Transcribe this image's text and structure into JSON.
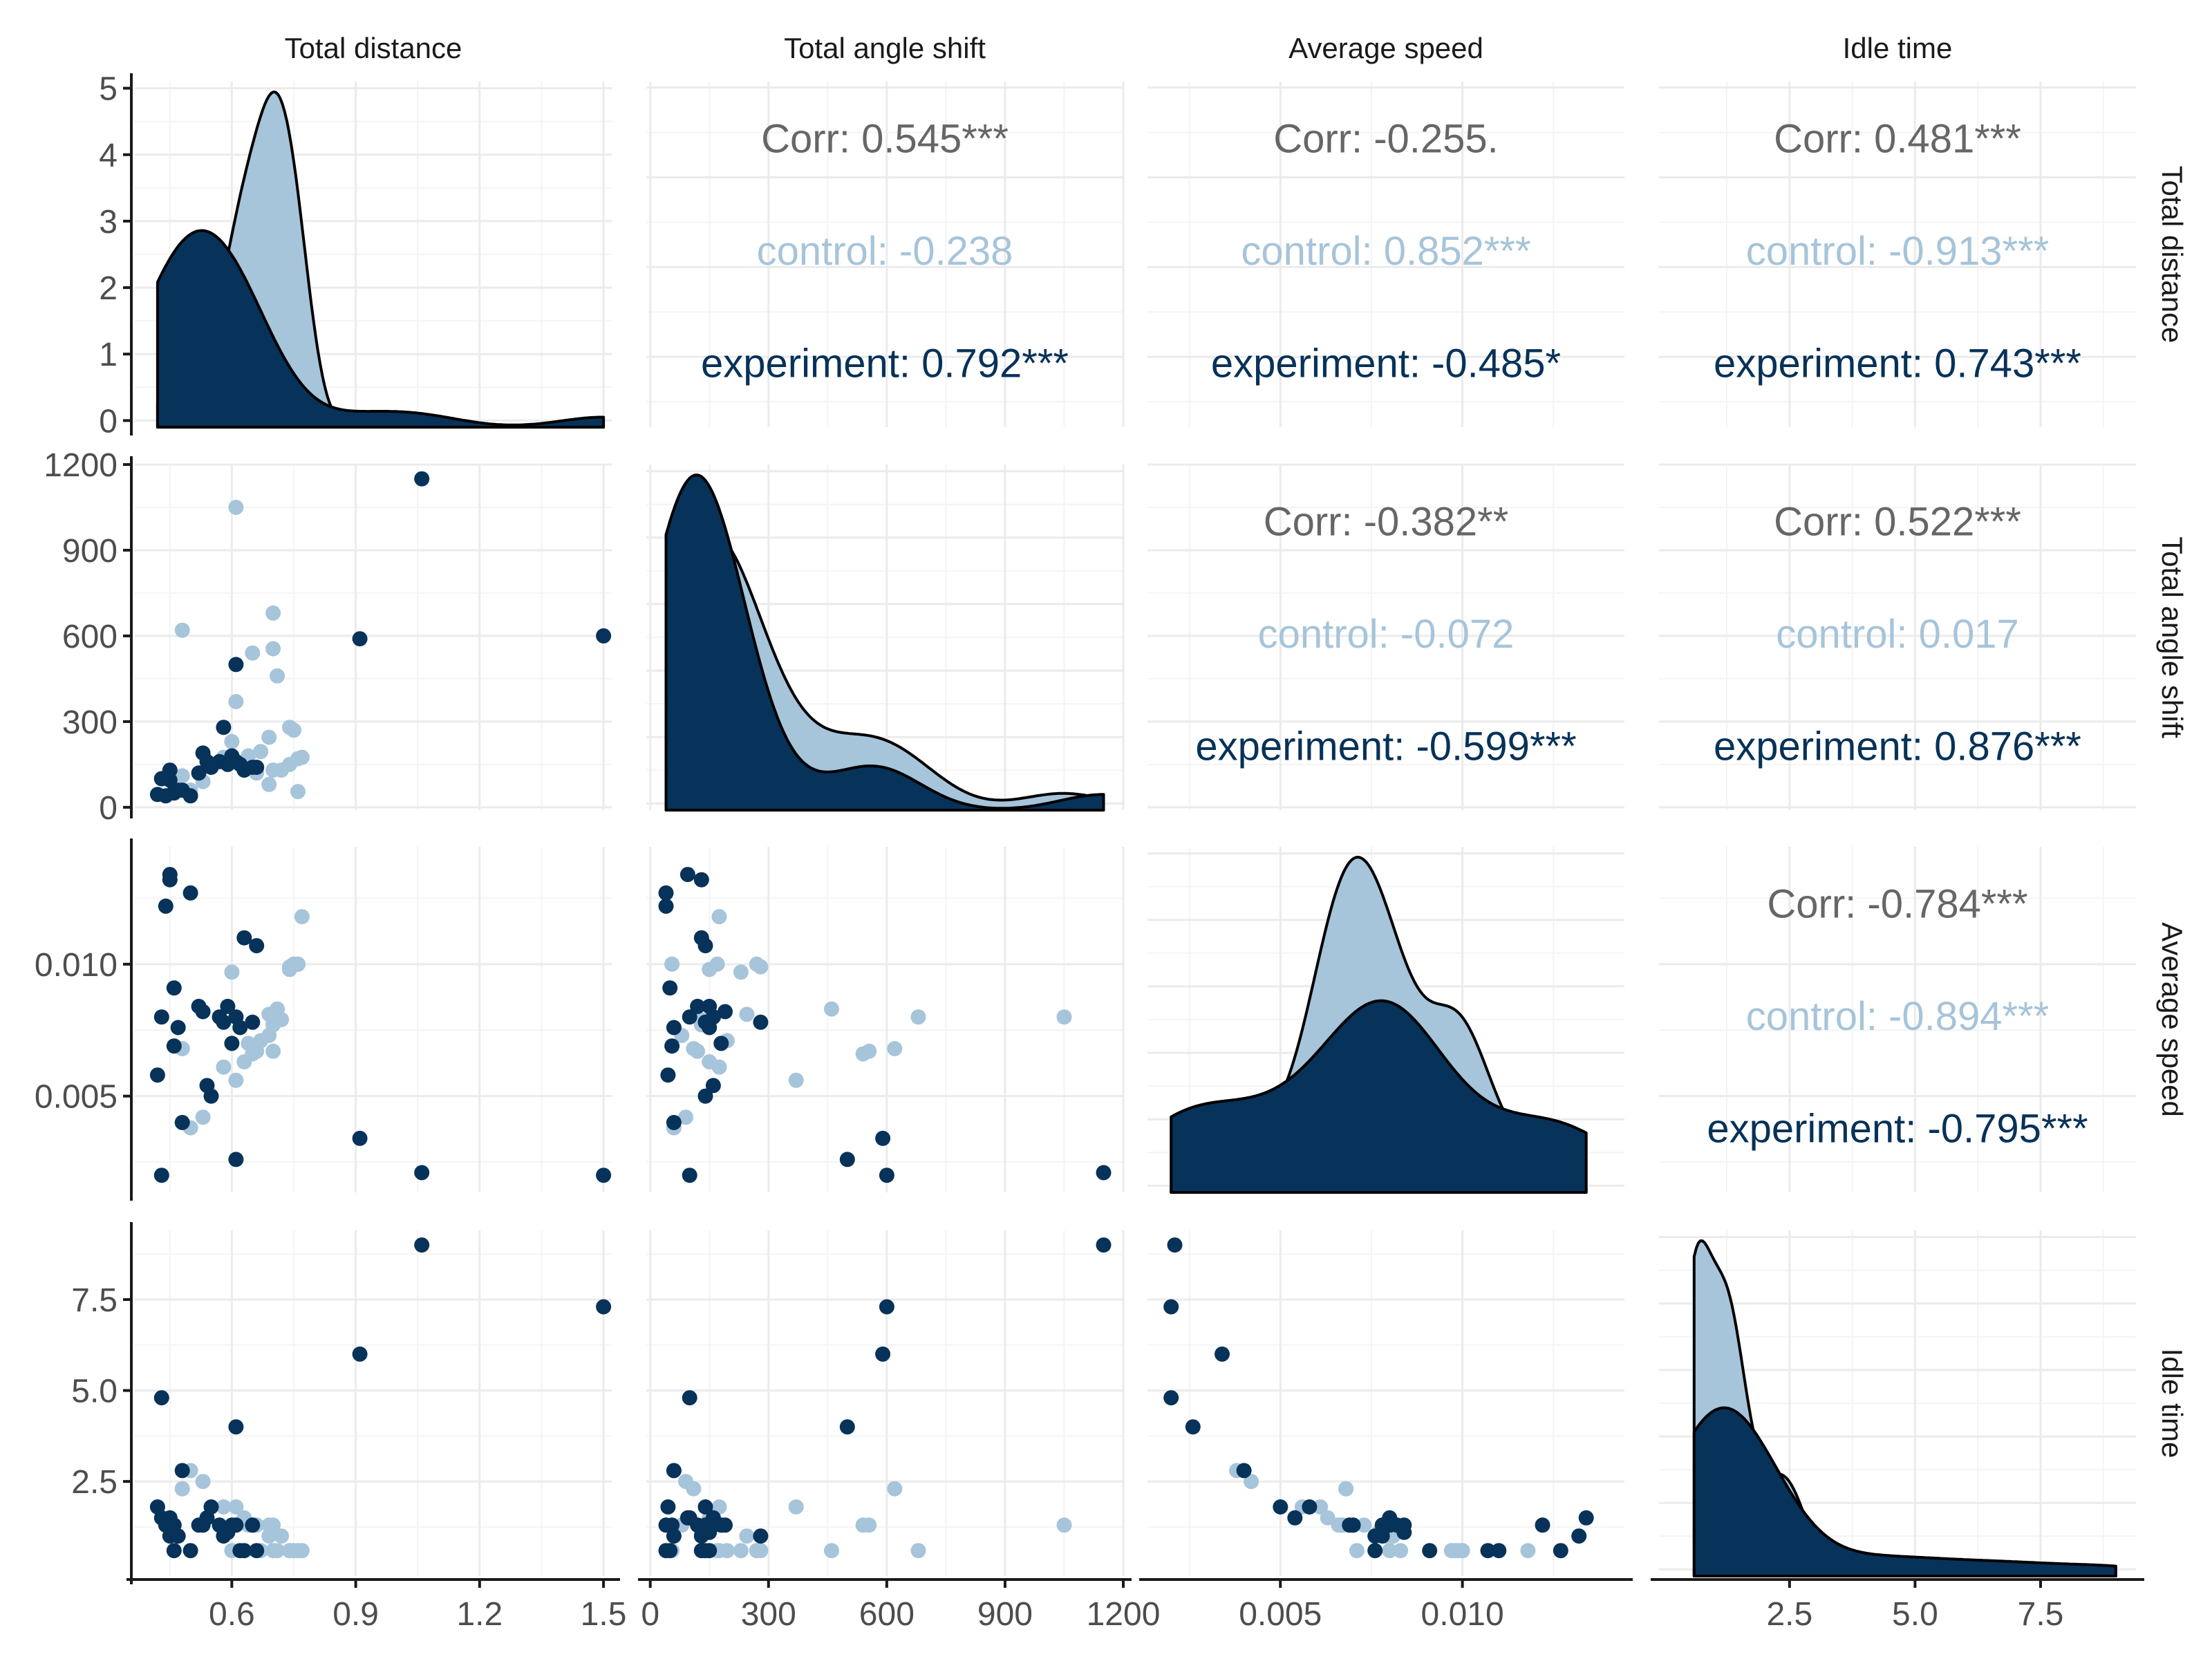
{
  "colors": {
    "control": "#a6c4da",
    "experiment": "#073259",
    "overall": "#666666",
    "grid_major": "#ebebeb",
    "grid_minor": "#f4f4f4",
    "axis": "#1a1a1a"
  },
  "chart_data": {
    "type": "scatter",
    "variables": [
      "Total distance",
      "Total angle shift",
      "Average speed",
      "Idle time"
    ],
    "groups": [
      "control",
      "experiment"
    ],
    "axes": {
      "Total distance": {
        "range": [
          0.365,
          1.52
        ],
        "ticks": [
          0.6,
          0.9,
          1.2,
          1.5
        ],
        "tick_labels": [
          "0.6",
          "0.9",
          "1.2",
          "1.5"
        ]
      },
      "Total angle shift": {
        "range": [
          -10,
          1200
        ],
        "ticks": [
          0,
          300,
          600,
          900,
          1200
        ],
        "tick_labels": [
          "0",
          "300",
          "600",
          "900",
          "1200"
        ]
      },
      "Average speed": {
        "range": [
          0.00135,
          0.01445
        ],
        "ticks": [
          0.005,
          0.01
        ],
        "tick_labels": [
          "0.005",
          "0.010"
        ]
      },
      "Idle time": {
        "range": [
          -0.1,
          9.4
        ],
        "ticks": [
          2.5,
          5.0,
          7.5
        ],
        "tick_labels": [
          "2.5",
          "5.0",
          "7.5"
        ]
      }
    },
    "density_axis": {
      "range": [
        -0.1,
        5.1
      ],
      "ticks": [
        0,
        1,
        2,
        3,
        4,
        5
      ],
      "tick_labels": [
        "0",
        "1",
        "2",
        "3",
        "4",
        "5"
      ]
    },
    "correlations": [
      {
        "row": 0,
        "col": 1,
        "overall": "Corr: 0.545***",
        "control": "control: -0.238",
        "experiment": "experiment: 0.792***"
      },
      {
        "row": 0,
        "col": 2,
        "overall": "Corr: -0.255.",
        "control": "control: 0.852***",
        "experiment": "experiment: -0.485*"
      },
      {
        "row": 0,
        "col": 3,
        "overall": "Corr: 0.481***",
        "control": "control: -0.913***",
        "experiment": "experiment: 0.743***"
      },
      {
        "row": 1,
        "col": 2,
        "overall": "Corr: -0.382**",
        "control": "control: -0.072",
        "experiment": "experiment: -0.599***"
      },
      {
        "row": 1,
        "col": 3,
        "overall": "Corr: 0.522***",
        "control": "control: 0.017",
        "experiment": "experiment: 0.876***"
      },
      {
        "row": 2,
        "col": 3,
        "overall": "Corr: -0.784***",
        "control": "control: -0.894***",
        "experiment": "experiment: -0.795***"
      }
    ],
    "points": {
      "control": [
        [
          0.48,
          620,
          0.0068,
          2.3
        ],
        [
          0.61,
          1050,
          0.008,
          1.3
        ],
        [
          0.7,
          680,
          0.008,
          0.6
        ],
        [
          0.7,
          555,
          0.0067,
          1.3
        ],
        [
          0.71,
          460,
          0.0083,
          0.6
        ],
        [
          0.65,
          540,
          0.0066,
          1.3
        ],
        [
          0.61,
          370,
          0.0056,
          1.8
        ],
        [
          0.6,
          230,
          0.0097,
          0.6
        ],
        [
          0.74,
          280,
          0.0099,
          0.6
        ],
        [
          0.75,
          270,
          0.01,
          0.6
        ],
        [
          0.69,
          245,
          0.0081,
          1.0
        ],
        [
          0.76,
          170,
          0.01,
          0.6
        ],
        [
          0.77,
          175,
          0.0118,
          0.6
        ],
        [
          0.74,
          150,
          0.0098,
          0.6
        ],
        [
          0.7,
          130,
          0.0077,
          1.1
        ],
        [
          0.72,
          130,
          0.0079,
          1.0
        ],
        [
          0.69,
          80,
          0.0073,
          1.3
        ],
        [
          0.76,
          55,
          0.01,
          0.6
        ],
        [
          0.66,
          120,
          0.0067,
          1.3
        ],
        [
          0.63,
          150,
          0.0063,
          1.5
        ],
        [
          0.64,
          180,
          0.007,
          1.3
        ],
        [
          0.67,
          195,
          0.0071,
          0.6
        ],
        [
          0.58,
          175,
          0.0061,
          1.8
        ],
        [
          0.5,
          60,
          0.0038,
          2.8
        ],
        [
          0.53,
          90,
          0.0042,
          2.5
        ],
        [
          0.48,
          110,
          0.0068,
          2.3
        ]
      ],
      "experiment": [
        [
          0.42,
          45,
          0.0058,
          1.8
        ],
        [
          0.43,
          100,
          0.008,
          1.5
        ],
        [
          0.44,
          40,
          0.0122,
          1.3
        ],
        [
          0.45,
          130,
          0.0132,
          1.0
        ],
        [
          0.45,
          95,
          0.0134,
          1.5
        ],
        [
          0.46,
          50,
          0.0091,
          0.6
        ],
        [
          0.46,
          55,
          0.0069,
          1.3
        ],
        [
          0.47,
          60,
          0.0076,
          1.0
        ],
        [
          0.48,
          60,
          0.004,
          2.8
        ],
        [
          0.5,
          40,
          0.0127,
          0.6
        ],
        [
          0.52,
          120,
          0.0084,
          1.3
        ],
        [
          0.53,
          190,
          0.0082,
          1.3
        ],
        [
          0.54,
          160,
          0.0054,
          1.5
        ],
        [
          0.55,
          140,
          0.005,
          1.8
        ],
        [
          0.57,
          160,
          0.008,
          1.3
        ],
        [
          0.58,
          280,
          0.0078,
          1.0
        ],
        [
          0.59,
          150,
          0.0084,
          1.1
        ],
        [
          0.6,
          180,
          0.007,
          1.3
        ],
        [
          0.61,
          160,
          0.008,
          1.3
        ],
        [
          0.62,
          150,
          0.0076,
          0.6
        ],
        [
          0.61,
          500,
          0.0026,
          4.0
        ],
        [
          0.63,
          130,
          0.011,
          0.6
        ],
        [
          0.66,
          140,
          0.0107,
          0.6
        ],
        [
          0.65,
          140,
          0.0078,
          1.3
        ],
        [
          0.43,
          100,
          0.002,
          4.8
        ],
        [
          0.91,
          590,
          0.0034,
          6.0
        ],
        [
          1.06,
          1150,
          0.0021,
          9.0
        ],
        [
          1.5,
          600,
          0.002,
          7.3
        ]
      ]
    }
  }
}
